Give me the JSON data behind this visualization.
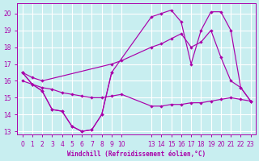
{
  "bg_color": "#c8eef0",
  "grid_color": "#ffffff",
  "line_color": "#aa00aa",
  "xlabel": "Windchill (Refroidissement éolien,°C)",
  "xlim": [
    -0.5,
    23.5
  ],
  "ylim": [
    12.8,
    20.6
  ],
  "yticks": [
    13,
    14,
    15,
    16,
    17,
    18,
    19,
    20
  ],
  "xticks": [
    0,
    1,
    2,
    3,
    4,
    5,
    6,
    7,
    8,
    9,
    10,
    13,
    14,
    15,
    16,
    17,
    18,
    19,
    20,
    21,
    22,
    23
  ],
  "lines": [
    {
      "x": [
        0,
        1,
        2,
        3,
        4,
        5,
        6,
        7,
        8,
        9
      ],
      "y": [
        16.5,
        15.8,
        15.4,
        14.3,
        14.2,
        13.3,
        13.0,
        13.1,
        14.0,
        16.5
      ]
    },
    {
      "x": [
        0,
        1,
        2,
        3,
        4,
        5,
        6,
        7,
        8,
        9,
        10,
        13,
        14,
        15,
        16,
        17,
        18,
        19,
        20,
        21,
        22,
        23
      ],
      "y": [
        16.0,
        15.8,
        15.6,
        15.5,
        15.3,
        15.2,
        15.1,
        15.0,
        15.0,
        15.1,
        15.2,
        14.5,
        14.5,
        14.6,
        14.6,
        14.7,
        14.7,
        14.8,
        14.9,
        15.0,
        14.9,
        14.8
      ]
    },
    {
      "x": [
        0,
        1,
        2,
        9,
        10,
        13,
        14,
        15,
        16,
        17,
        18,
        19,
        20,
        21,
        22,
        23
      ],
      "y": [
        16.5,
        16.2,
        16.0,
        17.0,
        17.2,
        18.0,
        18.2,
        18.5,
        18.8,
        18.0,
        18.3,
        19.0,
        17.4,
        16.0,
        15.6,
        14.8
      ]
    },
    {
      "x": [
        0,
        1,
        2,
        3,
        4,
        5,
        6,
        7,
        8,
        9,
        13,
        14,
        15,
        16,
        17,
        18,
        19,
        20,
        21,
        22,
        23
      ],
      "y": [
        16.5,
        15.8,
        15.4,
        14.3,
        14.2,
        13.3,
        13.0,
        13.1,
        14.0,
        16.5,
        19.8,
        20.0,
        20.2,
        19.5,
        17.0,
        19.0,
        20.1,
        20.1,
        19.0,
        15.6,
        14.8
      ]
    }
  ]
}
